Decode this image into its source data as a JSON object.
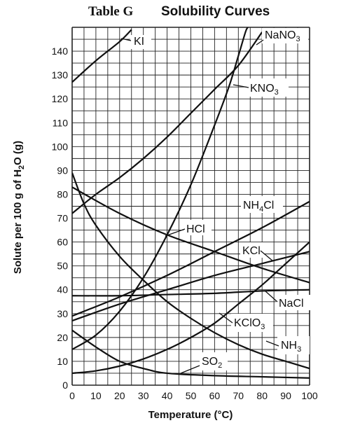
{
  "title": {
    "table": "Table G",
    "name": "Solubility Curves"
  },
  "chart_data": {
    "type": "line",
    "title": "Table G Solubility Curves",
    "xlabel": "Temperature (°C)",
    "ylabel": "Solute per 100 g of H2O (g)",
    "xlim": [
      0,
      100
    ],
    "ylim": [
      0,
      150
    ],
    "xticks": [
      "0",
      "10",
      "20",
      "30",
      "40",
      "50",
      "60",
      "70",
      "80",
      "90",
      "100"
    ],
    "yticks": [
      "0",
      "10",
      "20",
      "30",
      "40",
      "50",
      "60",
      "70",
      "80",
      "90",
      "100",
      "110",
      "120",
      "130",
      "140"
    ],
    "grid": true,
    "series": [
      {
        "name": "KI",
        "x": [
          0,
          10,
          20,
          25
        ],
        "y": [
          127,
          136,
          144,
          149
        ]
      },
      {
        "name": "NaNO3",
        "x": [
          0,
          10,
          20,
          30,
          40,
          50,
          60,
          70,
          80
        ],
        "y": [
          72,
          80,
          87,
          95,
          104,
          114,
          124,
          134,
          148
        ]
      },
      {
        "name": "KNO3",
        "x": [
          0,
          10,
          20,
          30,
          40,
          50,
          60,
          66,
          70,
          73,
          74
        ],
        "y": [
          15,
          21,
          31,
          45,
          63,
          84,
          109,
          125,
          138,
          148,
          150
        ]
      },
      {
        "name": "NH4Cl",
        "x": [
          0,
          20,
          40,
          60,
          80,
          100
        ],
        "y": [
          29,
          37,
          46,
          56,
          66,
          77
        ]
      },
      {
        "name": "HCl",
        "x": [
          0,
          20,
          40,
          60,
          80,
          100
        ],
        "y": [
          83,
          72,
          63,
          56,
          49,
          43
        ]
      },
      {
        "name": "KCl",
        "x": [
          0,
          20,
          40,
          60,
          80,
          100
        ],
        "y": [
          27,
          34,
          40,
          46,
          51,
          56
        ]
      },
      {
        "name": "NaCl",
        "x": [
          0,
          20,
          40,
          60,
          80,
          100
        ],
        "y": [
          37.5,
          37.5,
          38,
          38.5,
          39.5,
          40
        ]
      },
      {
        "name": "KClO3",
        "x": [
          0,
          10,
          20,
          30,
          40,
          50,
          60,
          70,
          80,
          90,
          100
        ],
        "y": [
          5,
          6,
          8,
          11,
          15,
          20,
          26,
          34,
          42,
          51,
          60
        ]
      },
      {
        "name": "NH3",
        "x": [
          0,
          5,
          10,
          20,
          30,
          40,
          50,
          60,
          70,
          80,
          90,
          100
        ],
        "y": [
          89,
          76,
          67,
          54,
          44,
          35,
          28,
          22,
          17,
          13,
          10,
          7
        ]
      },
      {
        "name": "SO2",
        "x": [
          0,
          10,
          20,
          30,
          40,
          60,
          80,
          100
        ],
        "y": [
          23,
          16,
          10,
          7,
          5,
          4,
          3.5,
          3
        ]
      }
    ]
  },
  "labels": {
    "KI": "KI",
    "NaNO3": [
      "NaNO",
      "3"
    ],
    "KNO3": [
      "KNO",
      "3"
    ],
    "NH4Cl": [
      "NH",
      "4",
      "Cl"
    ],
    "HCl": "HCl",
    "KCl": "KCl",
    "NaCl": "NaCl",
    "KClO3": [
      "KClO",
      "3"
    ],
    "NH3": [
      "NH",
      "3"
    ],
    "SO2": [
      "SO",
      "2"
    ]
  },
  "ylabel_parts": [
    "Solute per 100 g of H",
    "2",
    "O (g)"
  ]
}
